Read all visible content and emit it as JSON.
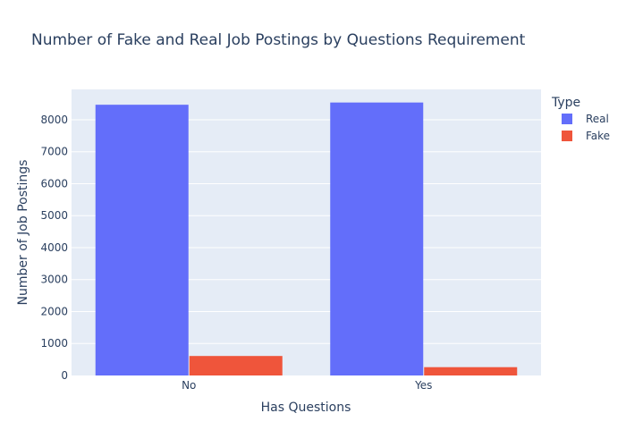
{
  "chart_data": {
    "type": "bar",
    "title": "Number of Fake and Real Job Postings by Questions Requirement",
    "xlabel": "Has Questions",
    "ylabel": "Number of Job Postings",
    "categories": [
      "No",
      "Yes"
    ],
    "series": [
      {
        "name": "Real",
        "values": [
          8470,
          8540
        ],
        "color": "#636efa"
      },
      {
        "name": "Fake",
        "values": [
          610,
          260
        ],
        "color": "#ef553b"
      }
    ],
    "ylim": [
      0,
      8950
    ],
    "yticks": [
      0,
      1000,
      2000,
      3000,
      4000,
      5000,
      6000,
      7000,
      8000
    ],
    "grid": true,
    "legend": {
      "title": "Type",
      "position": "top-right"
    },
    "plot_background": "#e5ecf6"
  }
}
